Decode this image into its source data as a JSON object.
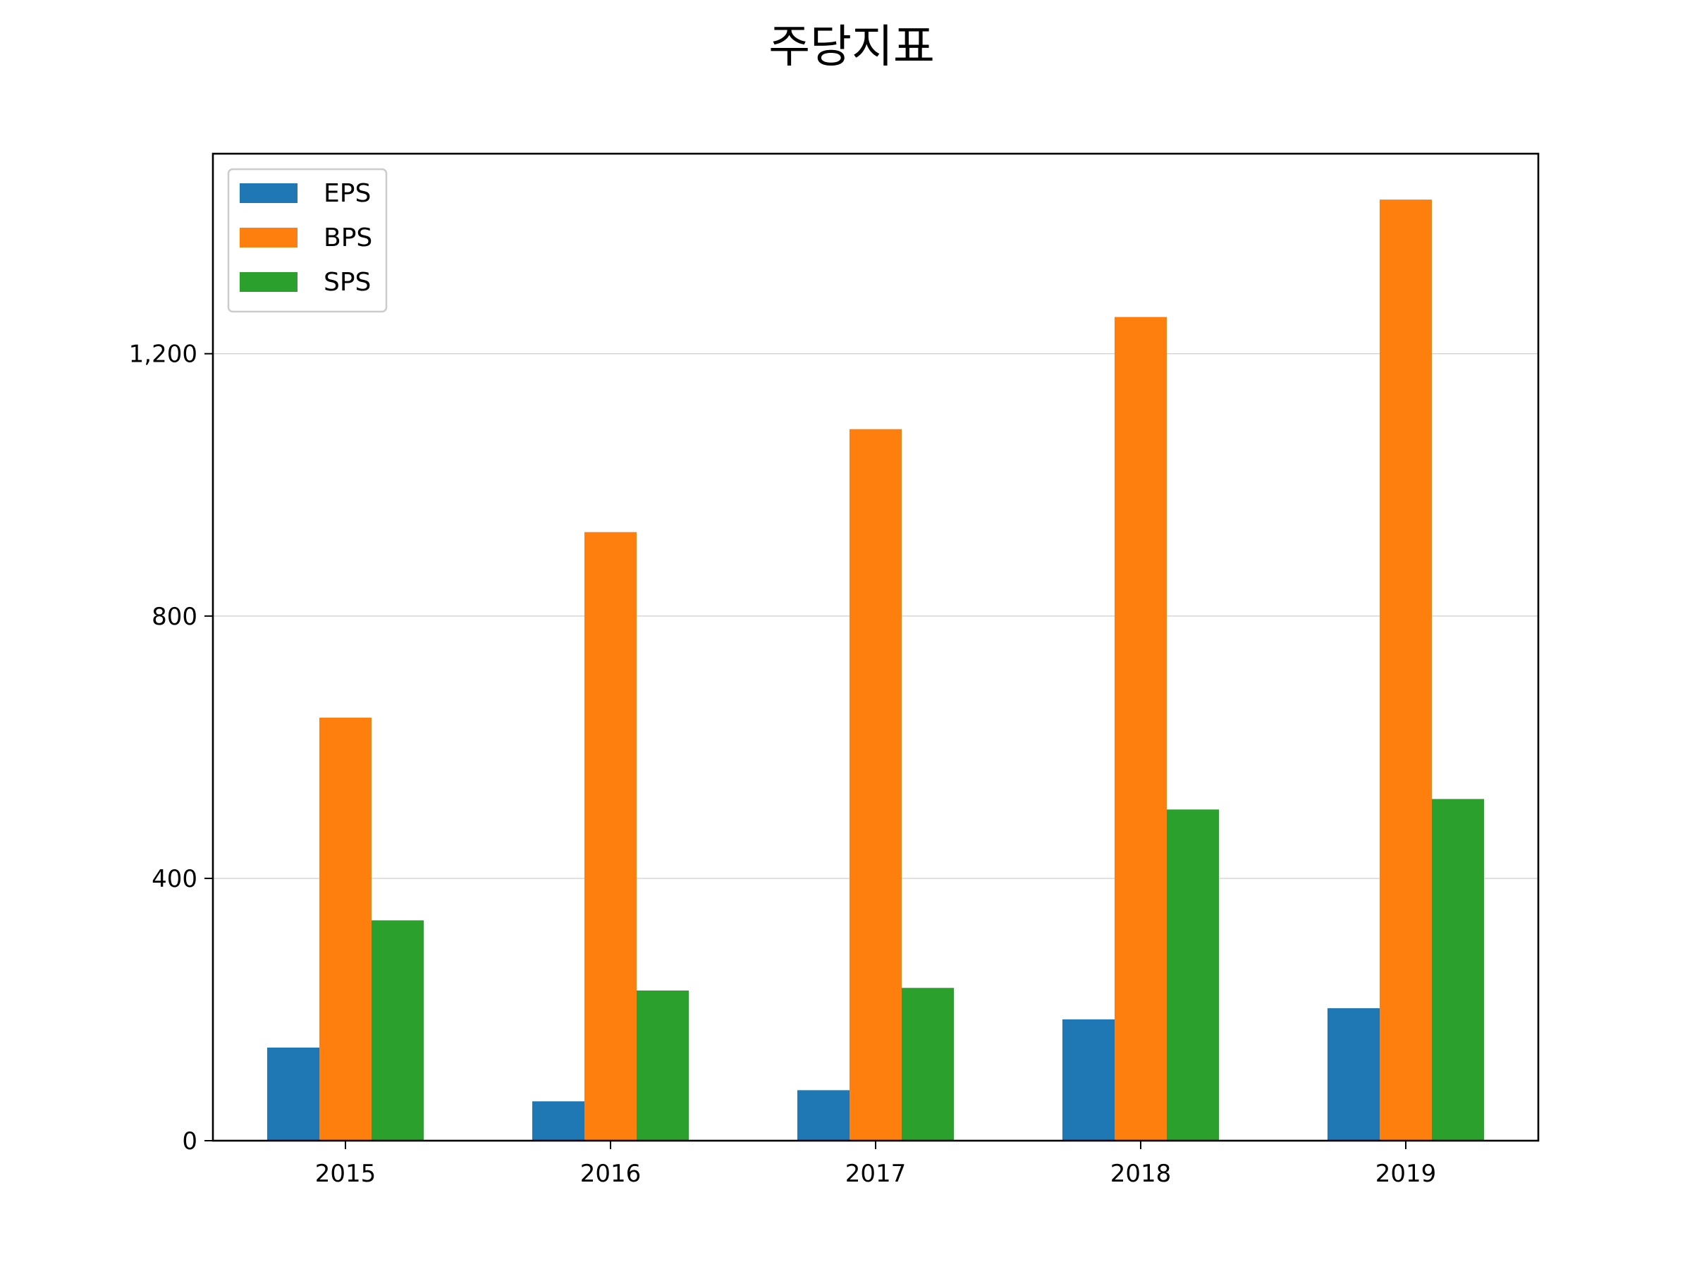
{
  "chart_data": {
    "type": "bar",
    "title": "주당지표",
    "xlabel": "",
    "ylabel": "",
    "categories": [
      "2015",
      "2016",
      "2017",
      "2018",
      "2019"
    ],
    "series": [
      {
        "name": "EPS",
        "color": "#1f77b4",
        "values": [
          142,
          60,
          77,
          185,
          202
        ]
      },
      {
        "name": "BPS",
        "color": "#ff7f0e",
        "values": [
          645,
          928,
          1085,
          1256,
          1435
        ]
      },
      {
        "name": "SPS",
        "color": "#2ca02c",
        "values": [
          336,
          229,
          233,
          505,
          521
        ]
      }
    ],
    "ylim": [
      0,
      1505
    ],
    "yticks": [
      0,
      400,
      800,
      1200
    ],
    "ytick_labels": [
      "0",
      "400",
      "800",
      "1,200"
    ],
    "grid": "horizontal",
    "legend_position": "top-left"
  }
}
